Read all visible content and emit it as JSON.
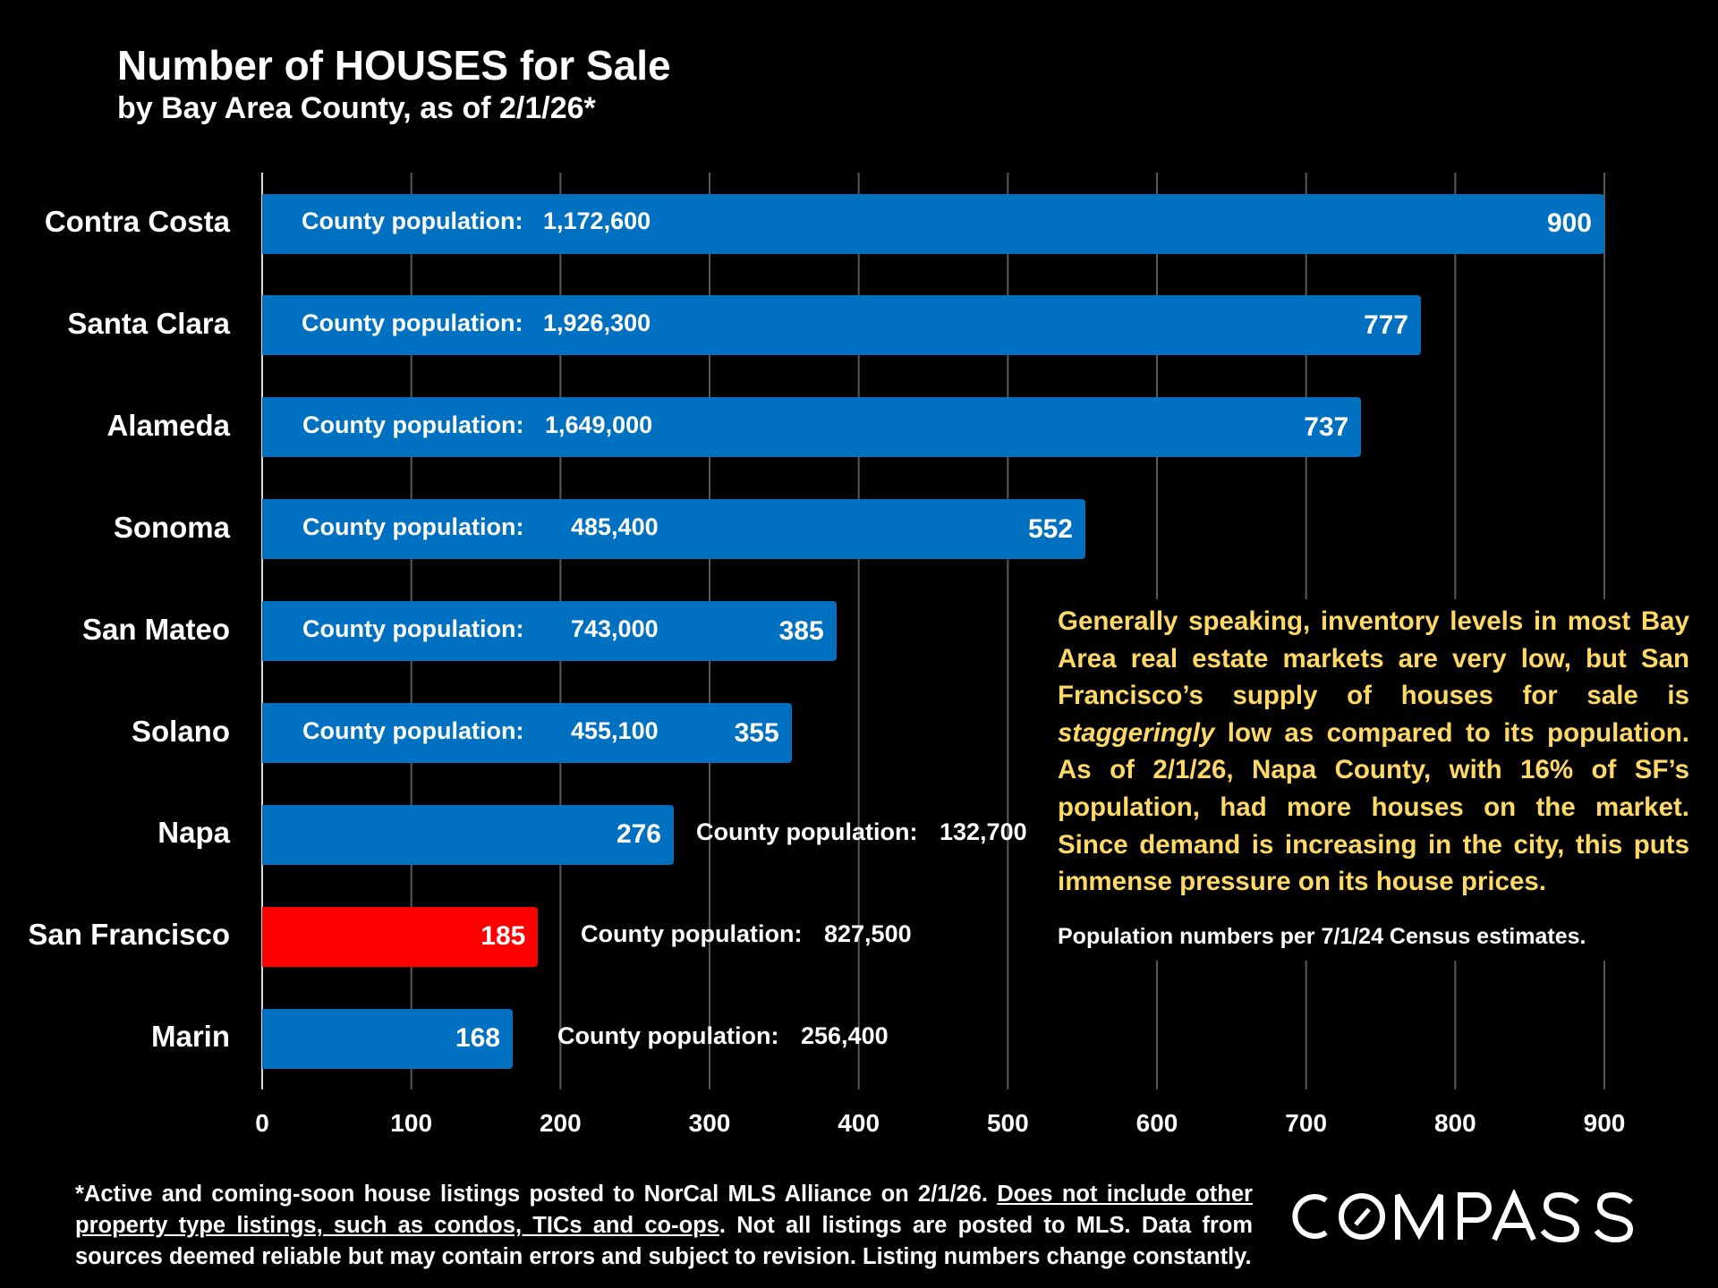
{
  "chart_data": {
    "type": "bar",
    "orientation": "horizontal",
    "title": "Number of HOUSES for Sale",
    "subtitle": "by Bay Area County, as of 2/1/26*",
    "categories": [
      "Contra Costa",
      "Santa Clara",
      "Alameda",
      "Sonoma",
      "San Mateo",
      "Solano",
      "Napa",
      "San Francisco",
      "Marin"
    ],
    "values": [
      900,
      777,
      737,
      552,
      385,
      355,
      276,
      185,
      168
    ],
    "population_label": "County population:",
    "populations": [
      "1,172,600",
      "1,926,300",
      "1,649,000",
      "485,400",
      "743,000",
      "455,100",
      "132,700",
      "827,500",
      "256,400"
    ],
    "highlight": "San Francisco",
    "colors": {
      "bar": "#0070C0",
      "highlight": "#FF0000",
      "grid": "#595959"
    },
    "xlim": [
      0,
      900
    ],
    "xticks": [
      0,
      100,
      200,
      300,
      400,
      500,
      600,
      700,
      800,
      900
    ],
    "grid": true,
    "legend": "none"
  },
  "annotation": {
    "p1": "Generally speaking, inventory levels in most Bay Area real estate markets are very low, but San Francisco’s supply of houses for sale is ",
    "p1_em": "staggeringly",
    "p1_end": " low as compared to its population. As of 2/1/26, Napa County, with 16% of SF’s population, had more houses on the market. Since demand is increasing in the city, this puts immense pressure on its house prices.",
    "census": "Population numbers per 7/1/24 Census estimates."
  },
  "footer": {
    "a": "*Active and coming-soon house listings posted to NorCal MLS Alliance on 2/1/26. ",
    "u": "Does not include other property type listings, such as condos, TICs and co-ops",
    "b": ". Not all listings are posted to MLS. Data from sources deemed reliable but may contain errors and subject to revision. Listing numbers change constantly."
  },
  "logo": "COMPASS"
}
